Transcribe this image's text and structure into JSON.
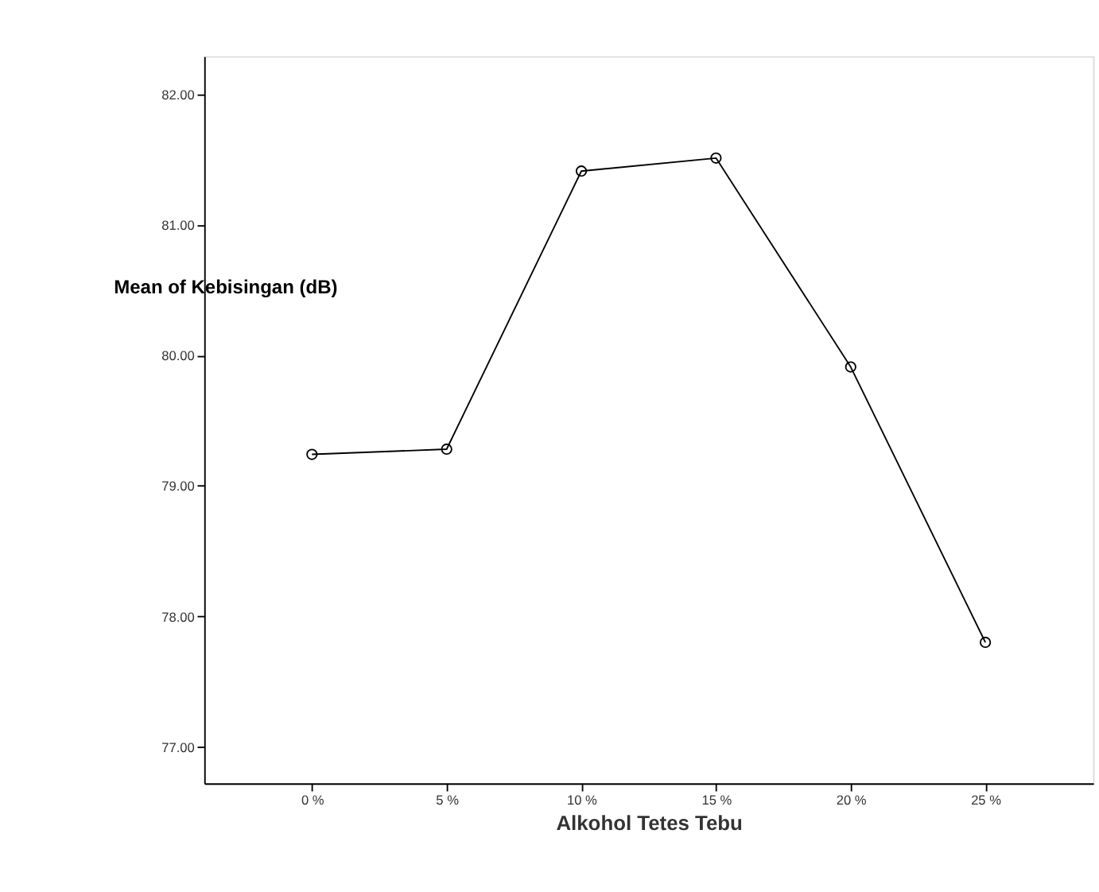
{
  "chart_data": {
    "type": "line",
    "xlabel": "Alkohol Tetes Tebu",
    "ylabel": "Mean of Kebisingan (dB)",
    "categories": [
      "0 %",
      "5 %",
      "10 %",
      "15 %",
      "20 %",
      "25 %"
    ],
    "series": [
      {
        "color": "#000000",
        "values": [
          79.24,
          79.28,
          81.41,
          81.51,
          79.91,
          77.8
        ]
      }
    ],
    "ylim": [
      76.72,
      82.29
    ],
    "yticks": [
      {
        "value": 77,
        "label": "77.00"
      },
      {
        "value": 78,
        "label": "78.00"
      },
      {
        "value": 79,
        "label": "79.00"
      },
      {
        "value": 80,
        "label": "80.00"
      },
      {
        "value": 81,
        "label": "81.00"
      },
      {
        "value": 82,
        "label": "82.00"
      }
    ],
    "marker": "circle",
    "line_style": "solid",
    "grid": false
  }
}
